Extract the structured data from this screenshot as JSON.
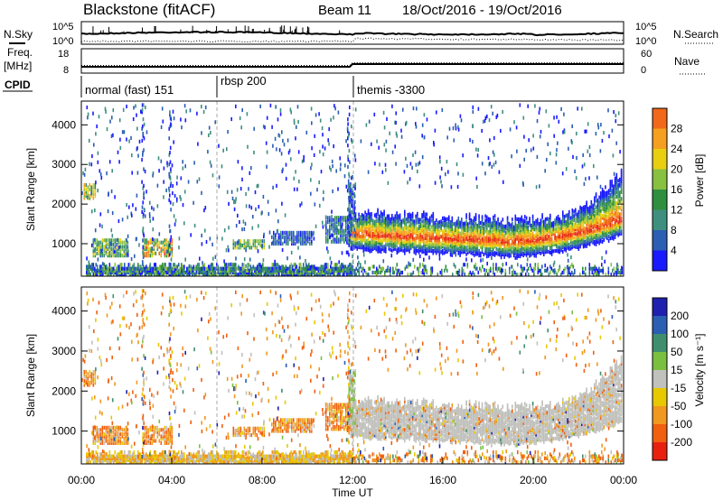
{
  "header": {
    "station": "Blackstone (fitACF)",
    "beam": "Beam 11",
    "dates": "18/Oct/2016 - 19/Oct/2016"
  },
  "colors": {
    "power": [
      "#1a1aff",
      "#2a5fb4",
      "#3f8f7f",
      "#2f8f3f",
      "#88c040",
      "#e8d010",
      "#f5a020",
      "#f06818",
      "#e82818"
    ],
    "velocity_pos": [
      "#1f1fb0",
      "#2a5fb4",
      "#3f8f6f",
      "#7ac040"
    ],
    "velocity_ground": "#c0c0bc",
    "velocity_neg": [
      "#e8c800",
      "#f09820",
      "#f06010",
      "#e82010"
    ]
  },
  "top_panels": {
    "nsky_label": "N.Sky",
    "nsky_ticks": [
      "10^5",
      "10^0"
    ],
    "nsearch_label": "N.Search",
    "nsearch_ticks": [
      "10^5",
      "10^0"
    ],
    "freq_label": "Freq.",
    "freq_unit": "[MHz]",
    "freq_ticks": [
      "18",
      "8"
    ],
    "nave_label": "Nave",
    "nave_ticks": [
      "60",
      "0"
    ],
    "cpid_label": "CPID",
    "modes": [
      {
        "name": "normal (fast) 151",
        "start": 0.2
      },
      {
        "name": "rbsp 200",
        "start": 6.0
      },
      {
        "name": "themis -3300",
        "start": 11.9
      }
    ]
  },
  "chart_data": [
    {
      "type": "heatmap",
      "name": "power",
      "ylabel": "Slant Range [km]",
      "ylim": [
        180,
        4600
      ],
      "yticks": [
        1000,
        2000,
        3000,
        4000
      ],
      "xlim": [
        0,
        24
      ],
      "colorbar_label": "Power [dB]",
      "colorbar_ticks": [
        "4",
        "8",
        "12",
        "16",
        "20",
        "24",
        "28"
      ],
      "scatter_regions": [
        {
          "t": [
            0.1,
            0.6
          ],
          "r": [
            2150,
            2500
          ],
          "level": [
            2,
            6
          ]
        },
        {
          "t": [
            0.5,
            2.1
          ],
          "r": [
            700,
            1100
          ],
          "level": [
            1,
            5
          ]
        },
        {
          "t": [
            2.7,
            4.0
          ],
          "r": [
            700,
            1100
          ],
          "level": [
            2,
            8
          ]
        },
        {
          "t": [
            6.7,
            8.1
          ],
          "r": [
            900,
            1100
          ],
          "level": [
            1,
            5
          ]
        },
        {
          "t": [
            8.4,
            10.2
          ],
          "r": [
            1000,
            1300
          ],
          "level": [
            0,
            2
          ]
        },
        {
          "t": [
            10.8,
            11.9
          ],
          "r": [
            1050,
            1700
          ],
          "level": [
            0,
            3
          ]
        },
        {
          "t": [
            11.9,
            23.9
          ],
          "r": [
            800,
            2500
          ],
          "level": [
            0,
            8
          ]
        }
      ],
      "f_region_band": {
        "start_range": 1250,
        "min_range": 1050,
        "min_time": 18.5,
        "end_range": 1600
      }
    },
    {
      "type": "heatmap",
      "name": "velocity",
      "ylabel": "Slant Range [km]",
      "ylim": [
        180,
        4600
      ],
      "yticks": [
        1000,
        2000,
        3000,
        4000
      ],
      "xlim": [
        0,
        24
      ],
      "xticks": [
        "00:00",
        "04:00",
        "08:00",
        "12:00",
        "16:00",
        "20:00",
        "00:00"
      ],
      "xlabel": "Time UT",
      "colorbar_label": "Velocity [m s⁻¹]",
      "colorbar_ticks": [
        "200",
        "100",
        "50",
        "15",
        "-15",
        "-50",
        "-100",
        "-200"
      ]
    }
  ]
}
